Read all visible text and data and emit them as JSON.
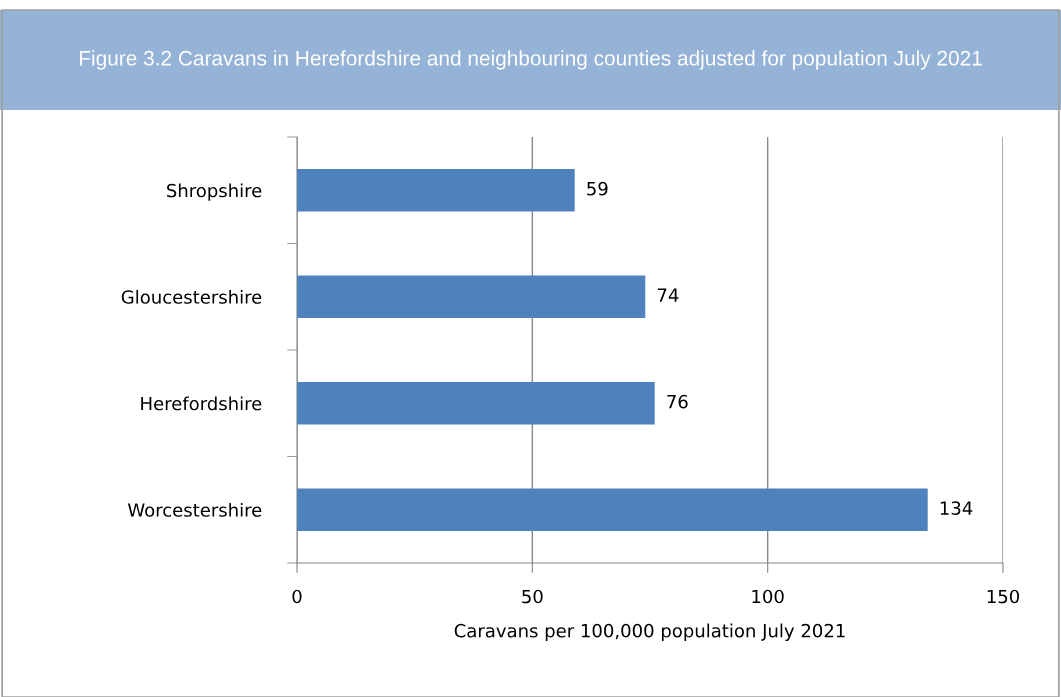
{
  "chart_data": {
    "type": "bar",
    "orientation": "horizontal",
    "title": "Figure 3.2 Caravans in Herefordshire and neighbouring counties adjusted for population July 2021",
    "xlabel": "Caravans per 100,000 population July 2021",
    "categories": [
      "Shropshire",
      "Gloucestershire",
      "Herefordshire",
      "Worcestershire"
    ],
    "values": [
      59,
      74,
      76,
      134
    ],
    "color": "#4f81bd",
    "xlim": [
      0,
      150
    ],
    "xticks": [
      0,
      50,
      100,
      150
    ],
    "grid": "x",
    "data_labels": true
  }
}
